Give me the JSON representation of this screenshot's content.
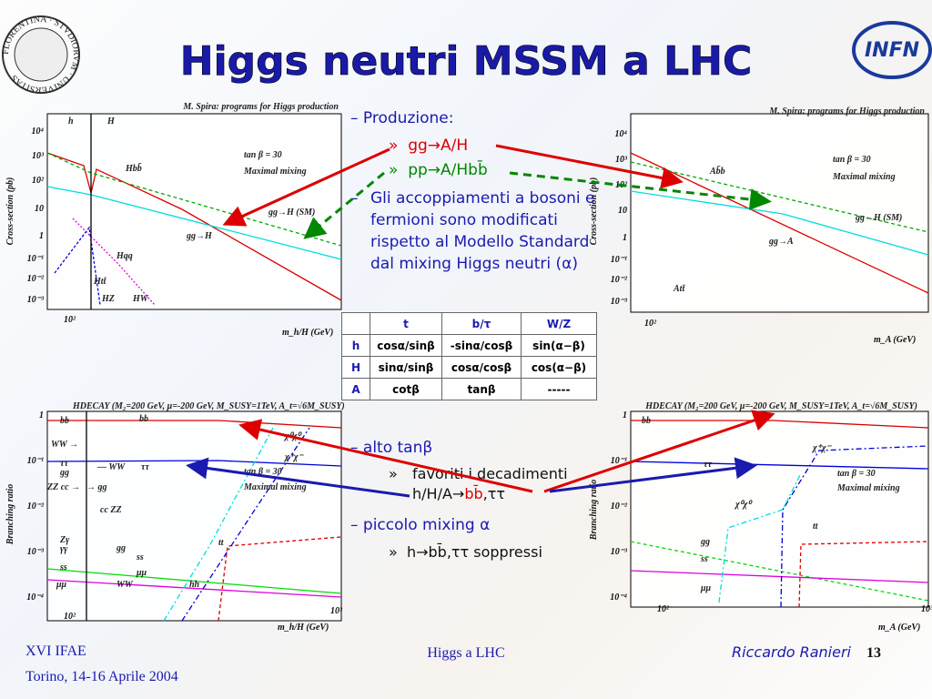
{
  "header": {
    "title": "Higgs neutri MSSM a LHC",
    "logo": "INFN",
    "seal": "FLORENTINA · STVDIORVM · UNIVERSITAS"
  },
  "plots": [
    {
      "source": "M. Spira: programs for Higgs production",
      "ylabel": "Cross-section (pb)",
      "xlabel": "m_h/H (GeV)",
      "yticks": [
        "10⁴",
        "10³",
        "10²",
        "10",
        "1",
        "10⁻¹",
        "10⁻²",
        "10⁻³"
      ],
      "xticks": [
        "10²"
      ],
      "labels": [
        "h",
        "H",
        "Hbb̄",
        "tan β = 30",
        "Maximal mixing",
        "gg→H (SM)",
        "gg→H",
        "Hqq",
        "Htt̄",
        "HZ",
        "HW"
      ]
    },
    {
      "source": "M. Spira: programs for Higgs production",
      "ylabel": "Cross-section (pb)",
      "xlabel": "m_A (GeV)",
      "yticks": [
        "10⁴",
        "10³",
        "10²",
        "10",
        "1",
        "10⁻¹",
        "10⁻²",
        "10⁻³"
      ],
      "xticks": [
        "10²"
      ],
      "labels": [
        "Ab̄b",
        "tan β = 30",
        "Maximal mixing",
        "gg→H (SM)",
        "gg→A",
        "Att̄"
      ]
    },
    {
      "source": "HDECAY (M₂=200 GeV, μ=-200 GeV, M_SUSY=1TeV, A_t=√6M_SUSY)",
      "ylabel": "Branching ratio",
      "xlabel": "m_h/H (GeV)",
      "yticks": [
        "1",
        "10⁻¹",
        "10⁻²",
        "10⁻³",
        "10⁻⁴"
      ],
      "xticks": [
        "10²",
        "10³"
      ],
      "labels": [
        "bb",
        "bb",
        "χ⁰χ⁰",
        "χ⁺χ⁻",
        "WW →",
        "ττ",
        "gg",
        "— WW",
        "ττ",
        "tan β = 30",
        "Maximal mixing",
        "ZZ cc →",
        "→ gg",
        "cc ZZ",
        "Zγ",
        "γγ",
        "gg",
        "ss",
        "ss",
        "μμ",
        "μμ",
        "WW",
        "hh",
        "tt"
      ]
    },
    {
      "source": "HDECAY (M₂=200 GeV, μ=-200 GeV, M_SUSY=1TeV, A_t=√6M_SUSY)",
      "ylabel": "Branching ratio",
      "xlabel": "m_A (GeV)",
      "yticks": [
        "1",
        "10⁻¹",
        "10⁻²",
        "10⁻³",
        "10⁻⁴"
      ],
      "xticks": [
        "10²",
        "10³"
      ],
      "labels": [
        "bb",
        "χ⁺χ⁻",
        "ττ",
        "tan β = 30",
        "Maximal mixing",
        "χ⁰χ⁰",
        "tt",
        "gg",
        "ss",
        "μμ"
      ]
    }
  ],
  "bullets": {
    "production": "Produzione:",
    "gg": "gg→A/H",
    "pp": "pp→A/Hbb̄",
    "couplings": "Gli accoppiamenti a bosoni e fermioni sono modificati rispetto al Modello Standard dal mixing Higgs neutri (α)",
    "high_tan": "alto tanβ",
    "favored": [
      "favoriti i decadimenti h/H/A→",
      "bb̄",
      ",ττ"
    ],
    "low_mixing": "piccolo mixing α",
    "suppressed": "h→bb̄,ττ soppressi"
  },
  "table": {
    "header": [
      "t",
      "b/τ",
      "W/Z"
    ],
    "rows": [
      [
        "h",
        "cosα/sinβ",
        "-sinα/cosβ",
        "sin(α−β)"
      ],
      [
        "H",
        "sinα/sinβ",
        "cosα/cosβ",
        "cos(α−β)"
      ],
      [
        "A",
        "cotβ",
        "tanβ",
        "-----"
      ]
    ]
  },
  "footer": {
    "conference": "XVI IFAE",
    "place": "Torino, 14-16 Aprile 2004",
    "topic": "Higgs a LHC",
    "author": "Riccardo Ranieri",
    "page": "13"
  }
}
